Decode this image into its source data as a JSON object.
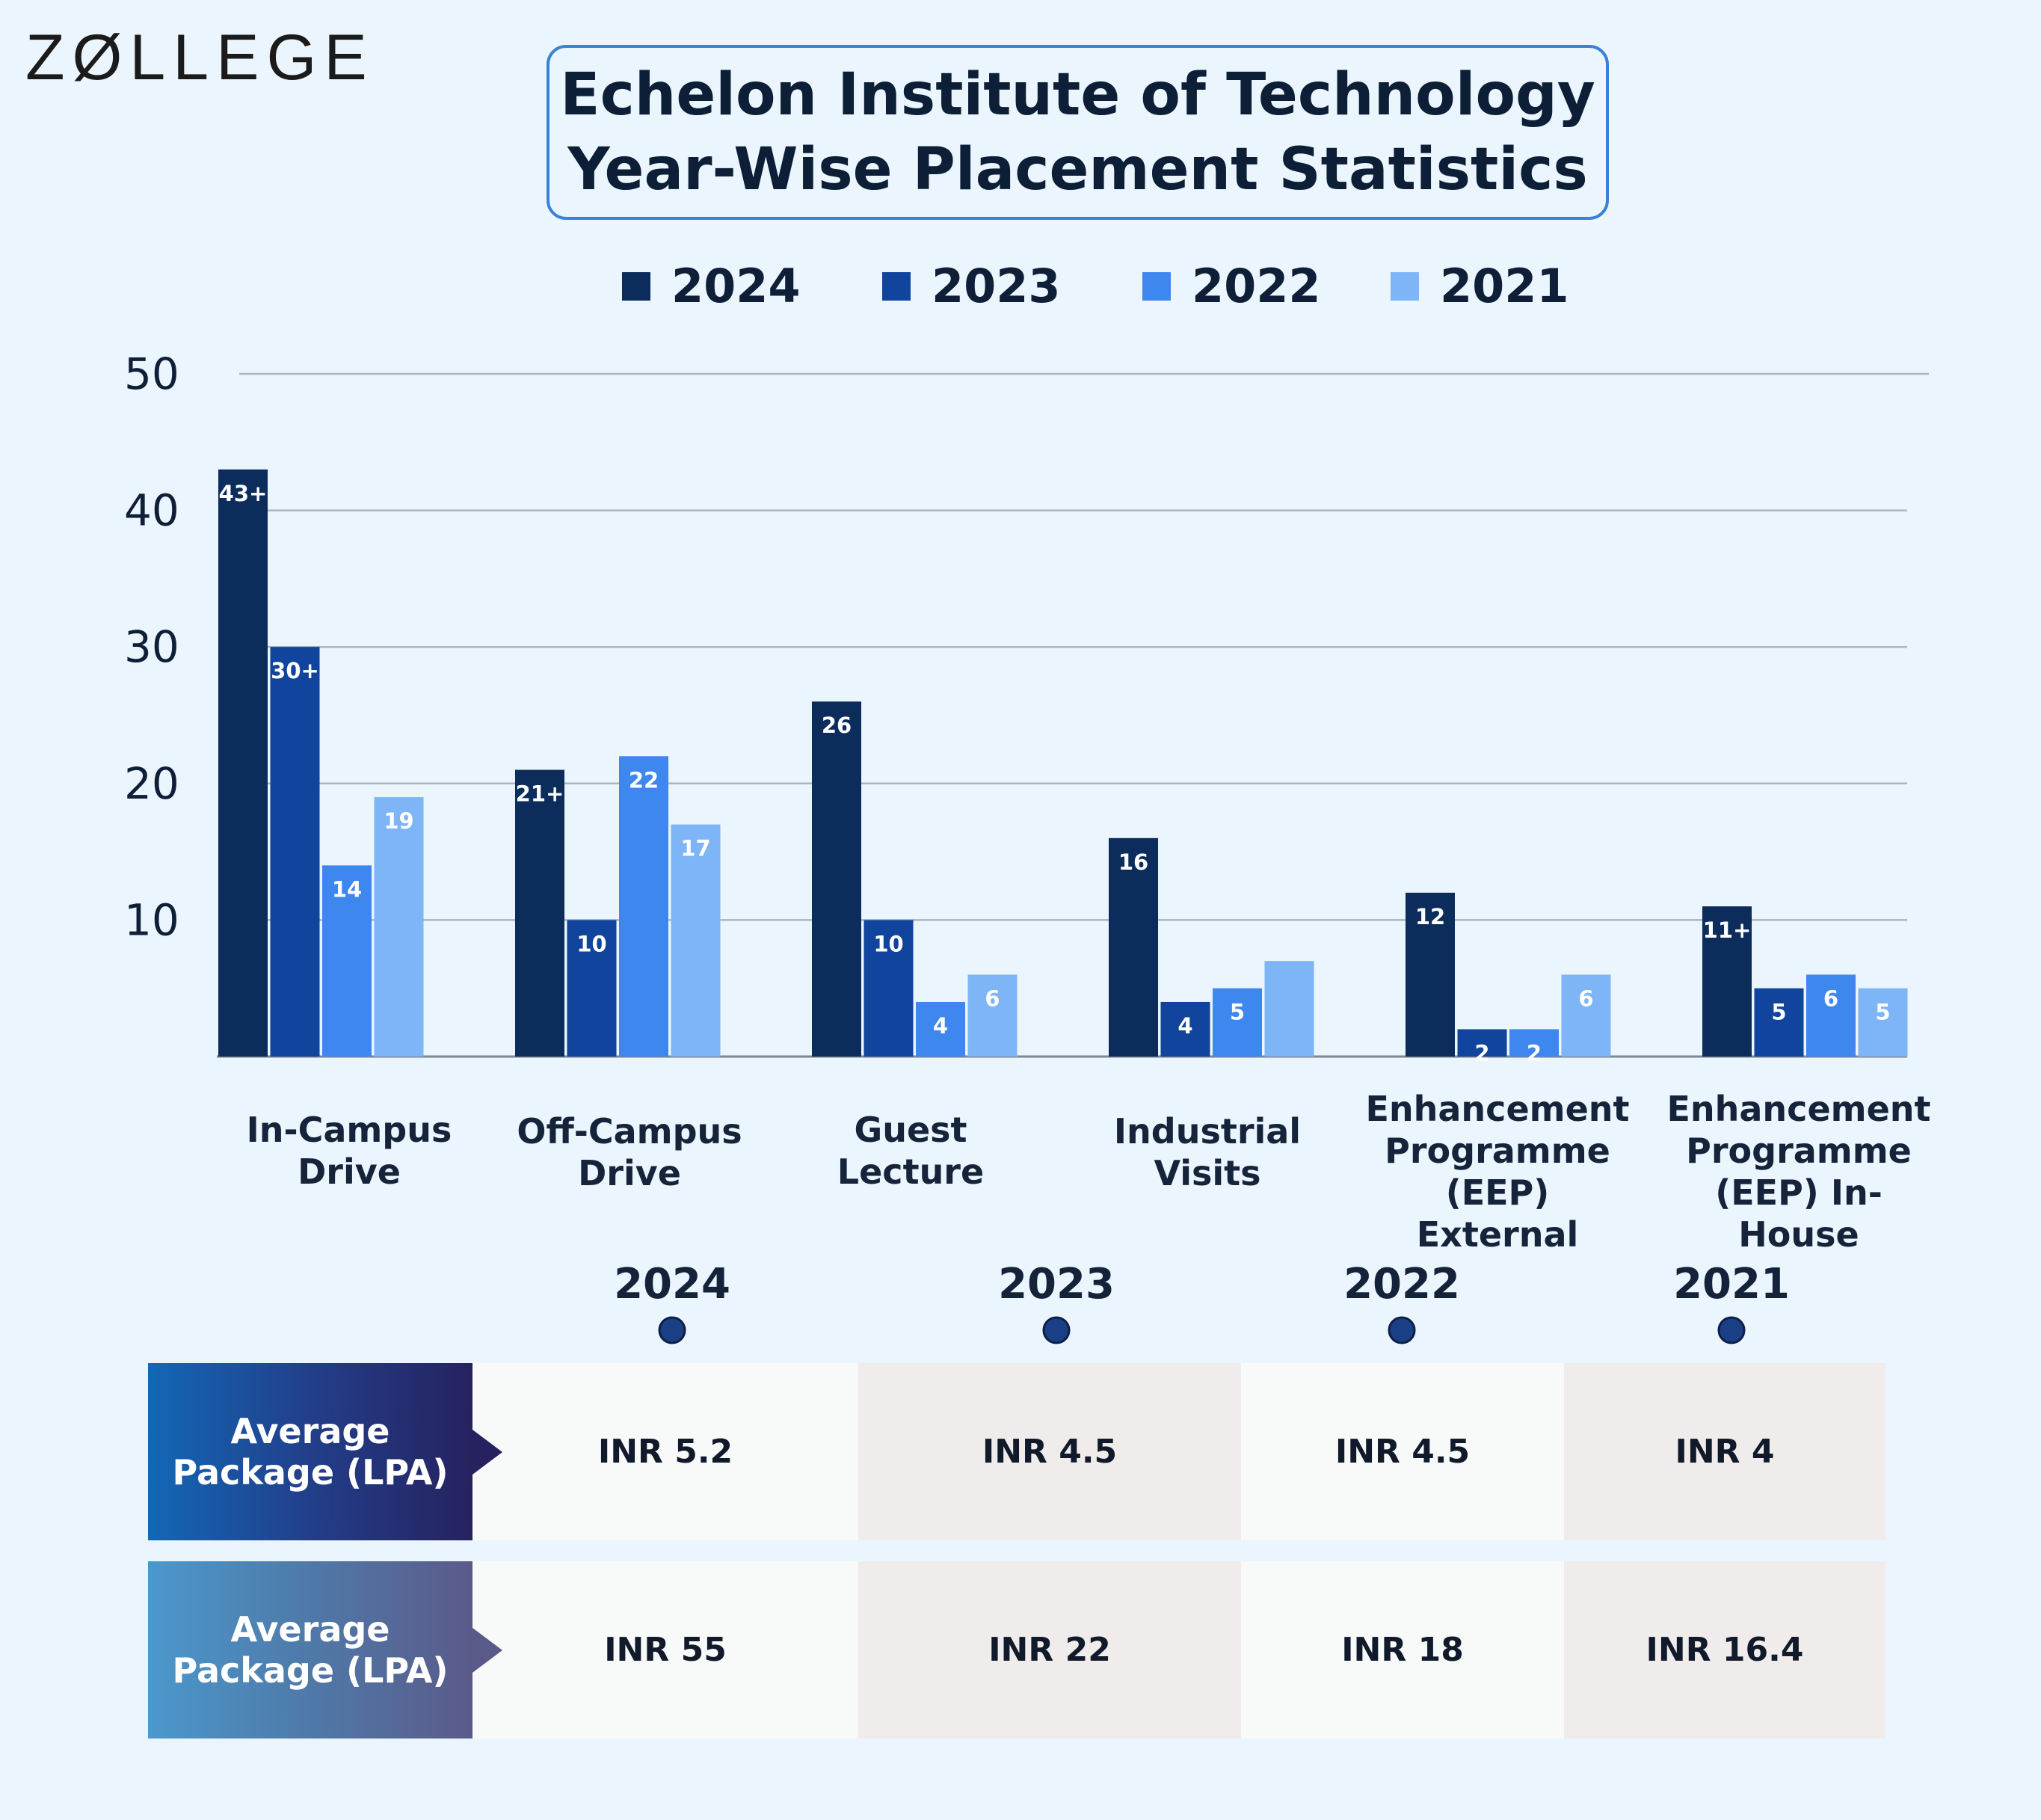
{
  "logo": "ZØLLEGE",
  "title_lines": [
    "Echelon Institute of Technology",
    "Year-Wise Placement Statistics"
  ],
  "colors": {
    "2024": "#0c2c5c",
    "2023": "#11449c",
    "2022": "#3e87ef",
    "2021": "#7eb5f7",
    "background": "#ebf5fd",
    "title_border": "#3a82d8"
  },
  "chart_data": {
    "type": "bar",
    "title": "Echelon Institute of Technology Year-Wise Placement Statistics",
    "legend_position": "top",
    "grid": true,
    "ylim": [
      0,
      50
    ],
    "yticks": [
      10,
      20,
      30,
      40,
      50
    ],
    "categories": [
      "In-Campus\nDrive",
      "Off-Campus\nDrive",
      "Guest\nLecture",
      "Industrial\nVisits",
      "Enhancement\nProgramme\n(EEP) External",
      "Enhancement\nProgramme\n(EEP) In-House"
    ],
    "series": [
      {
        "name": "2024",
        "values": [
          43,
          21,
          26,
          16,
          12,
          11
        ],
        "labels": [
          "43+",
          "21+",
          "26",
          "16",
          "12",
          "11+"
        ]
      },
      {
        "name": "2023",
        "values": [
          30,
          10,
          10,
          4,
          2,
          5
        ],
        "labels": [
          "30+",
          "10",
          "10",
          "4",
          "2",
          "5"
        ]
      },
      {
        "name": "2022",
        "values": [
          14,
          22,
          4,
          5,
          2,
          6
        ],
        "labels": [
          "14",
          "22",
          "4",
          "5",
          "2",
          "6"
        ]
      },
      {
        "name": "2021",
        "values": [
          19,
          17,
          6,
          7,
          6,
          5
        ],
        "labels": [
          "19",
          "17",
          "6",
          "",
          "6",
          "5"
        ]
      }
    ]
  },
  "timeline_years": [
    "2024",
    "2023",
    "2022",
    "2021"
  ],
  "table": {
    "rows": [
      {
        "header": "Average\nPackage (LPA)",
        "values": [
          "INR 5.2",
          "INR 4.5",
          "INR 4.5",
          "INR 4"
        ]
      },
      {
        "header": "Average\nPackage (LPA)",
        "values": [
          "INR 55",
          "INR 22",
          "INR 18",
          "INR 16.4"
        ]
      }
    ]
  }
}
